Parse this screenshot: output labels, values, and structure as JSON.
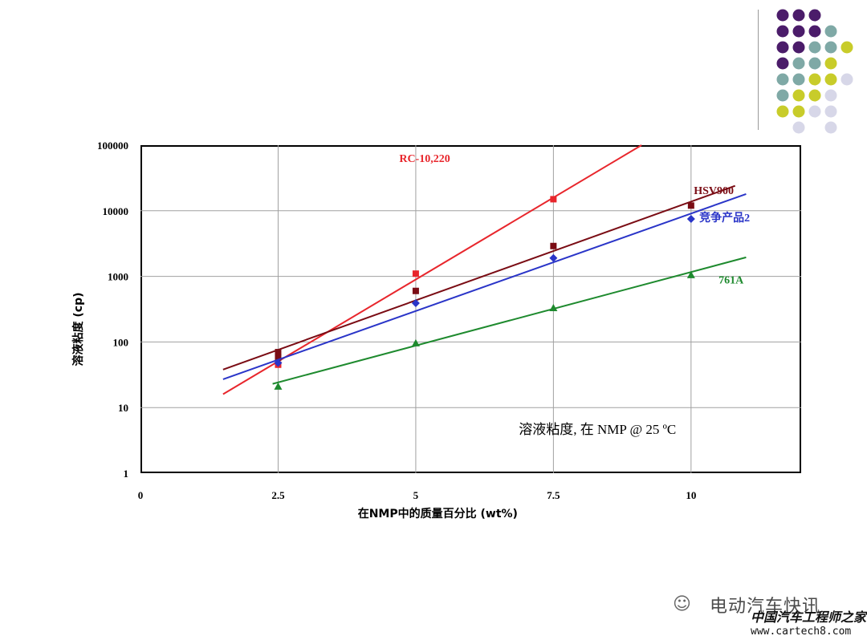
{
  "chart_data": {
    "type": "scatter",
    "y_scale": "log",
    "xlim": [
      0,
      12
    ],
    "ylim": [
      1,
      100000
    ],
    "x_ticks": [
      0,
      2.5,
      5,
      7.5,
      10
    ],
    "x_tick_labels": [
      "0",
      "2.5",
      "5",
      "7.5",
      "10"
    ],
    "y_ticks": [
      1,
      10,
      100,
      1000,
      10000,
      100000
    ],
    "y_tick_labels": [
      "1",
      "10",
      "100",
      "1000",
      "10000",
      "100000"
    ],
    "xlabel": "在NMP中的质量百分比 (wt%)",
    "ylabel": "溶液粘度 (cp)",
    "annotation": "溶液粘度, 在 NMP @ 25 ºC",
    "grid": true,
    "series": [
      {
        "name": "RC-10,220",
        "color": "#e8262c",
        "marker": "square",
        "x": [
          2.5,
          5,
          7.5
        ],
        "y": [
          45,
          1100,
          15000
        ],
        "fit": {
          "x": [
            1.5,
            9.1
          ],
          "y": [
            16,
            100000
          ]
        }
      },
      {
        "name": "HSV900",
        "color": "#7a0c14",
        "marker": "square",
        "x": [
          2.5,
          2.5,
          5,
          7.5,
          10
        ],
        "y": [
          70,
          58,
          600,
          2900,
          12000
        ],
        "fit": {
          "x": [
            1.5,
            10.8
          ],
          "y": [
            38,
            24000
          ]
        }
      },
      {
        "name": "竞争产品2",
        "color": "#2a35c8",
        "marker": "diamond",
        "x": [
          2.5,
          5,
          7.5,
          10
        ],
        "y": [
          48,
          390,
          1900,
          7500
        ],
        "fit": {
          "x": [
            1.5,
            11
          ],
          "y": [
            27,
            18000
          ]
        }
      },
      {
        "name": "761A",
        "color": "#1e8a2e",
        "marker": "triangle",
        "x": [
          2.5,
          5,
          7.5,
          10
        ],
        "y": [
          21,
          96,
          330,
          1050
        ],
        "fit": {
          "x": [
            2.4,
            11
          ],
          "y": [
            23,
            1950
          ]
        }
      }
    ]
  },
  "dot_colors": [
    "#4b1c6a",
    "#7fa9a6",
    "#c8cc2a",
    "#d7d7e8"
  ],
  "watermark": {
    "logo_icon": "wechat-icon",
    "account": "电动汽车快讯",
    "site_cn": "中国汽车工程师之家",
    "url": "www.cartech8.com"
  }
}
